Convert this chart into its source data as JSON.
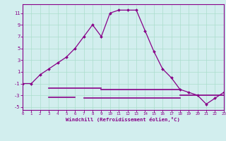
{
  "x": [
    0,
    1,
    2,
    3,
    4,
    5,
    6,
    7,
    8,
    9,
    10,
    11,
    12,
    13,
    14,
    15,
    16,
    17,
    18,
    19,
    20,
    21,
    22,
    23
  ],
  "main_y": [
    -1,
    -1,
    0.5,
    1.5,
    2.5,
    3.5,
    5.0,
    7.0,
    9.0,
    7.0,
    11.0,
    11.5,
    11.5,
    11.5,
    8.0,
    4.5,
    1.5,
    0.0,
    -2.0,
    -2.5,
    -3.0,
    -4.5,
    -3.5,
    -2.5
  ],
  "extra_lines": [
    {
      "x1": 3,
      "x2": 9,
      "y": -1.8
    },
    {
      "x1": 9,
      "x2": 18,
      "y": -2.0
    },
    {
      "x1": 3,
      "x2": 6,
      "y": -3.3
    },
    {
      "x1": 7,
      "x2": 18,
      "y": -3.5
    },
    {
      "x1": 18,
      "x2": 23,
      "y": -3.0
    }
  ],
  "xlim": [
    0,
    23
  ],
  "ylim": [
    -5.5,
    12.5
  ],
  "yticks": [
    -5,
    -3,
    -1,
    1,
    3,
    5,
    7,
    9,
    11
  ],
  "xticks": [
    0,
    1,
    2,
    3,
    4,
    5,
    6,
    7,
    8,
    9,
    10,
    11,
    12,
    13,
    14,
    15,
    16,
    17,
    18,
    19,
    20,
    21,
    22,
    23
  ],
  "xlabel": "Windchill (Refroidissement éolien,°C)",
  "bg_color": "#d2eeee",
  "line_color": "#880088",
  "grid_color": "#aaddcc",
  "marker_color": "#880088",
  "tick_color": "#880088",
  "label_color": "#880088"
}
